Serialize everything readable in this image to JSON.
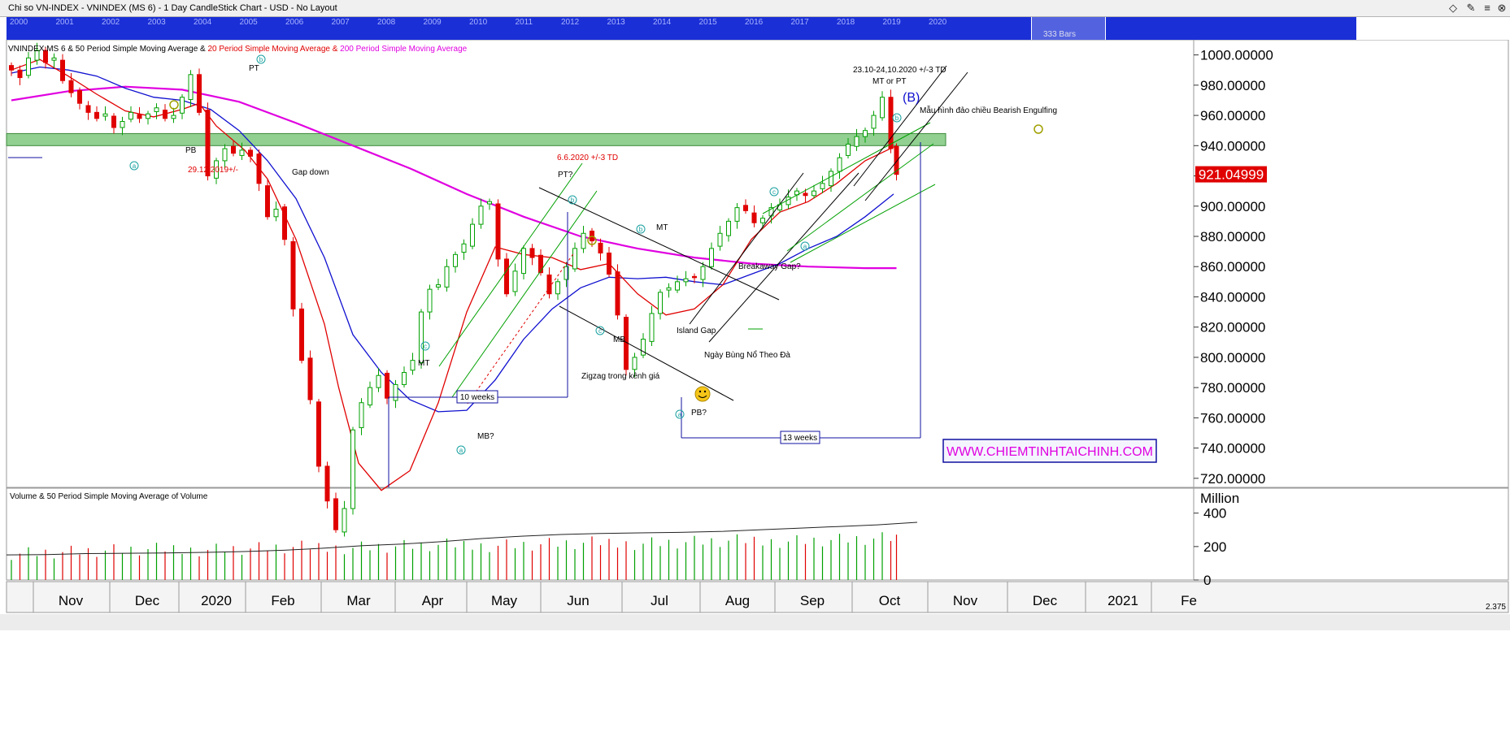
{
  "window": {
    "title": "Chi so VN-INDEX - VNINDEX (MS 6) - 1 Day CandleStick Chart - USD - No Layout",
    "controls": [
      "◇",
      "✎",
      "≡",
      "⊗"
    ]
  },
  "overview": {
    "years": [
      "2000",
      "2001",
      "2002",
      "2003",
      "2004",
      "2005",
      "2006",
      "2007",
      "2008",
      "2009",
      "2010",
      "2011",
      "2012",
      "2013",
      "2014",
      "2015",
      "2016",
      "2017",
      "2018",
      "2019",
      "2020"
    ],
    "bars_label": "333 Bars"
  },
  "chart_data": {
    "type": "candlestick",
    "title": "VNINDEX:MS 6 & 50 Period Simple Moving Average & 20 Period Simple Moving Average & 200 Period Simple Moving Average",
    "title_parts": [
      {
        "text": "VNINDEX:MS 6 & 50 Period Simple Moving Average & ",
        "color": "#000000"
      },
      {
        "text": "20 Period Simple Moving Average & ",
        "color": "#e00000"
      },
      {
        "text": "200 Period Simple Moving Average",
        "color": "#e000e0"
      }
    ],
    "y_ticks": [
      "1000.00000",
      "980.00000",
      "960.00000",
      "940.00000",
      "920.00000",
      "900.00000",
      "880.00000",
      "860.00000",
      "840.00000",
      "820.00000",
      "800.00000",
      "780.00000",
      "760.00000",
      "740.00000",
      "720.00000"
    ],
    "ylim": [
      714,
      1010
    ],
    "last_price": "921.04999",
    "x_labels": [
      "Nov",
      "Dec",
      "2020",
      "Feb",
      "Mar",
      "Apr",
      "May",
      "Jun",
      "Jul",
      "Aug",
      "Sep",
      "Oct",
      "Nov",
      "Dec",
      "2021",
      "Fe"
    ],
    "colors": {
      "up": "#00a000",
      "down": "#e00000",
      "sma20": "#e00000",
      "sma50": "#1010d0",
      "sma200": "#e000e0"
    },
    "price_series": [
      [
        0,
        990
      ],
      [
        3,
        985
      ],
      [
        6,
        998
      ],
      [
        9,
        1003
      ],
      [
        12,
        995
      ],
      [
        15,
        998
      ],
      [
        18,
        983
      ],
      [
        21,
        975
      ],
      [
        24,
        968
      ],
      [
        27,
        962
      ],
      [
        30,
        958
      ],
      [
        33,
        961
      ],
      [
        36,
        952
      ],
      [
        39,
        956
      ],
      [
        42,
        962
      ],
      [
        45,
        958
      ],
      [
        48,
        961
      ],
      [
        51,
        965
      ],
      [
        54,
        958
      ],
      [
        57,
        960
      ],
      [
        60,
        972
      ],
      [
        63,
        987
      ],
      [
        66,
        962
      ],
      [
        69,
        920
      ],
      [
        72,
        930
      ],
      [
        75,
        938
      ],
      [
        78,
        935
      ],
      [
        81,
        937
      ],
      [
        84,
        933
      ],
      [
        87,
        915
      ],
      [
        90,
        893
      ],
      [
        93,
        898
      ],
      [
        96,
        878
      ],
      [
        99,
        832
      ],
      [
        102,
        798
      ],
      [
        105,
        772
      ],
      [
        108,
        728
      ],
      [
        111,
        705
      ],
      [
        114,
        686
      ],
      [
        117,
        700
      ],
      [
        120,
        752
      ],
      [
        123,
        770
      ],
      [
        126,
        780
      ],
      [
        129,
        788
      ],
      [
        132,
        773
      ],
      [
        135,
        782
      ],
      [
        138,
        790
      ],
      [
        141,
        798
      ],
      [
        144,
        830
      ],
      [
        147,
        845
      ],
      [
        150,
        848
      ],
      [
        153,
        860
      ],
      [
        156,
        868
      ],
      [
        159,
        875
      ],
      [
        162,
        888
      ],
      [
        165,
        900
      ],
      [
        168,
        903
      ],
      [
        171,
        865
      ],
      [
        174,
        842
      ],
      [
        177,
        857
      ],
      [
        180,
        872
      ],
      [
        183,
        866
      ],
      [
        186,
        856
      ],
      [
        189,
        842
      ],
      [
        192,
        850
      ],
      [
        195,
        860
      ],
      [
        198,
        872
      ],
      [
        201,
        882
      ],
      [
        204,
        877
      ],
      [
        207,
        869
      ],
      [
        210,
        855
      ],
      [
        213,
        828
      ],
      [
        216,
        792
      ],
      [
        219,
        800
      ],
      [
        222,
        812
      ],
      [
        225,
        829
      ],
      [
        228,
        843
      ],
      [
        231,
        846
      ],
      [
        234,
        850
      ],
      [
        237,
        852
      ],
      [
        240,
        853
      ],
      [
        243,
        860
      ],
      [
        246,
        872
      ],
      [
        249,
        882
      ],
      [
        252,
        890
      ],
      [
        255,
        899
      ],
      [
        258,
        897
      ],
      [
        261,
        889
      ],
      [
        264,
        892
      ],
      [
        267,
        899
      ],
      [
        270,
        901
      ],
      [
        273,
        906
      ],
      [
        276,
        910
      ],
      [
        279,
        907
      ],
      [
        282,
        910
      ],
      [
        285,
        915
      ],
      [
        288,
        923
      ],
      [
        291,
        932
      ],
      [
        294,
        941
      ],
      [
        297,
        946
      ],
      [
        300,
        950
      ],
      [
        303,
        960
      ],
      [
        306,
        972
      ],
      [
        309,
        938
      ],
      [
        311,
        921
      ]
    ],
    "sma20": [
      [
        0,
        990
      ],
      [
        10,
        997
      ],
      [
        20,
        986
      ],
      [
        30,
        974
      ],
      [
        40,
        963
      ],
      [
        50,
        959
      ],
      [
        60,
        964
      ],
      [
        66,
        968
      ],
      [
        72,
        953
      ],
      [
        82,
        937
      ],
      [
        90,
        918
      ],
      [
        100,
        878
      ],
      [
        110,
        822
      ],
      [
        115,
        780
      ],
      [
        122,
        730
      ],
      [
        130,
        712
      ],
      [
        140,
        725
      ],
      [
        150,
        770
      ],
      [
        160,
        830
      ],
      [
        170,
        873
      ],
      [
        180,
        868
      ],
      [
        190,
        866
      ],
      [
        200,
        858
      ],
      [
        210,
        862
      ],
      [
        220,
        842
      ],
      [
        230,
        828
      ],
      [
        240,
        832
      ],
      [
        250,
        848
      ],
      [
        260,
        878
      ],
      [
        270,
        896
      ],
      [
        280,
        903
      ],
      [
        290,
        915
      ],
      [
        300,
        930
      ],
      [
        311,
        940
      ]
    ],
    "sma50": [
      [
        0,
        988
      ],
      [
        10,
        992
      ],
      [
        20,
        990
      ],
      [
        30,
        986
      ],
      [
        40,
        978
      ],
      [
        50,
        972
      ],
      [
        60,
        970
      ],
      [
        70,
        964
      ],
      [
        80,
        950
      ],
      [
        90,
        930
      ],
      [
        100,
        905
      ],
      [
        110,
        866
      ],
      [
        120,
        815
      ],
      [
        130,
        790
      ],
      [
        140,
        772
      ],
      [
        150,
        764
      ],
      [
        160,
        765
      ],
      [
        170,
        785
      ],
      [
        180,
        812
      ],
      [
        190,
        832
      ],
      [
        200,
        846
      ],
      [
        210,
        853
      ],
      [
        220,
        852
      ],
      [
        230,
        853
      ],
      [
        240,
        850
      ],
      [
        250,
        848
      ],
      [
        260,
        855
      ],
      [
        270,
        862
      ],
      [
        280,
        872
      ],
      [
        290,
        880
      ],
      [
        300,
        893
      ],
      [
        310,
        908
      ]
    ],
    "sma200": [
      [
        0,
        970
      ],
      [
        20,
        976
      ],
      [
        40,
        979
      ],
      [
        60,
        977
      ],
      [
        80,
        969
      ],
      [
        100,
        955
      ],
      [
        120,
        940
      ],
      [
        140,
        925
      ],
      [
        160,
        908
      ],
      [
        180,
        893
      ],
      [
        200,
        880
      ],
      [
        220,
        872
      ],
      [
        240,
        866
      ],
      [
        260,
        862
      ],
      [
        280,
        860
      ],
      [
        300,
        859
      ],
      [
        311,
        859
      ]
    ],
    "resistance_band": [
      940,
      948
    ],
    "volume": {
      "label": "Volume & 50 Period Simple Moving Average of Volume",
      "y_ticks": [
        "400",
        "200",
        "0"
      ],
      "unit": "Million",
      "ylim": [
        0,
        520
      ],
      "sma_values": [
        150,
        152,
        158,
        160,
        162,
        165,
        170,
        178,
        190,
        205,
        215,
        230,
        248,
        262,
        272,
        278,
        282,
        285,
        290,
        300,
        310,
        320,
        330,
        345
      ]
    },
    "annotations": {
      "pt_top": "PT",
      "pb_left": "PB",
      "date_1": "29.12.2019+/-",
      "gap_down": "Gap down",
      "mt_apr": "MT",
      "mb_may": "MB?",
      "weeks_10": "10 weeks",
      "date_2": "6.6.2020 +/-3 TD",
      "pt_jun": "PT?",
      "zigzag": "Zigzag trong kênh giá",
      "mt_jul": "MT",
      "mb_jul": "MB",
      "island": "Island Gap",
      "explosive": "Ngày Bùng Nổ Theo Đà",
      "pb_aug": "PB?",
      "breakaway": "Breakaway Gap?",
      "weeks_13": "13 weeks",
      "date_3": "23.10-24,10.2020  +/-3 TD",
      "mt_pt": "MT or PT",
      "b_wave": "(B)",
      "engulfing": "Mẫu hình đảo chiều Bearish Engulfing",
      "website": "WWW.CHIEMTINHTAICHINH.COM",
      "scale_value": "2.375"
    },
    "wave_labels": [
      "b",
      "a",
      "c",
      "a",
      "b",
      "c",
      "b",
      "a",
      "c",
      "a",
      "b",
      "c",
      "c"
    ]
  }
}
